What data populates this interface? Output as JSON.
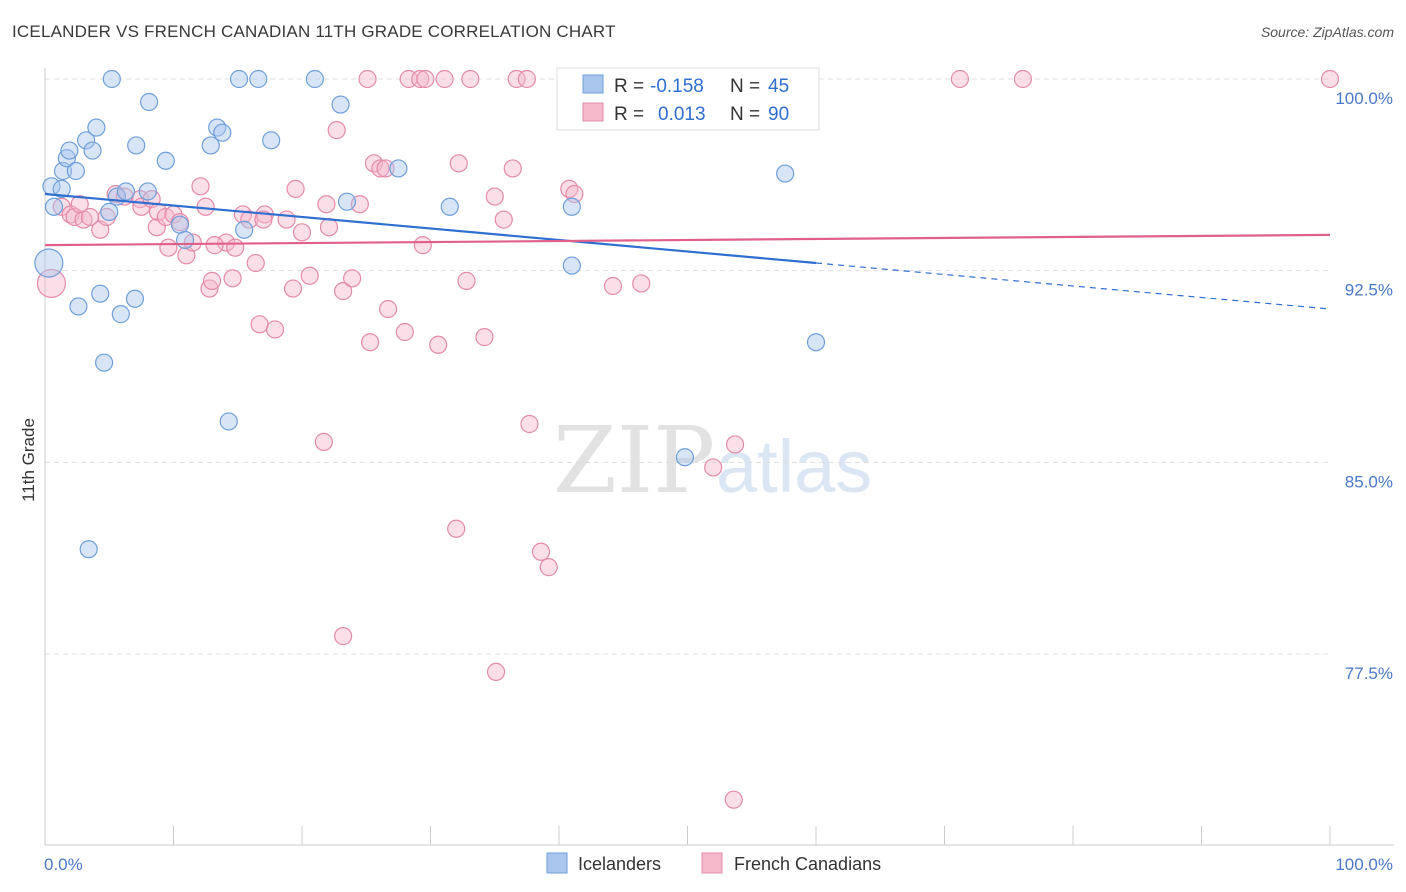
{
  "title": "ICELANDER VS FRENCH CANADIAN 11TH GRADE CORRELATION CHART",
  "source": "Source: ZipAtlas.com",
  "colors": {
    "blue_fill": "#a9c6ee",
    "blue_stroke": "#6f9fdb",
    "blue_line": "#2f6fd0",
    "pink_fill": "#f5b8cb",
    "pink_stroke": "#e58aa8",
    "pink_line": "#e0608a",
    "tick_text": "#4a78c8",
    "grid": "#dddddd"
  },
  "legend": {
    "rows": [
      {
        "r_label": "R =",
        "r_value": "-0.158",
        "n_label": "N =",
        "n_value": "45"
      },
      {
        "r_label": "R =",
        "r_value": "0.013",
        "n_label": "N =",
        "n_value": "90"
      }
    ]
  },
  "bottom_legend": [
    "Icelanders",
    "French Canadians"
  ],
  "chart_data": {
    "type": "scatter",
    "xlabel": "",
    "ylabel": "11th Grade",
    "xlim": [
      0,
      100
    ],
    "ylim": [
      70.6,
      100.8
    ],
    "x_tick_labels": [
      "0.0%",
      "100.0%"
    ],
    "y_ticks": [
      100.0,
      92.5,
      85.0,
      77.5
    ],
    "y_tick_labels": [
      "100.0%",
      "92.5%",
      "85.0%",
      "77.5%"
    ],
    "grid": true,
    "legend_position": "top-center",
    "watermark": "ZIPatlas",
    "series": [
      {
        "name": "Icelanders",
        "trend": {
          "x": [
            0,
            60
          ],
          "y": [
            95.5,
            92.8
          ],
          "dashed_extension_to": [
            100,
            91.0
          ]
        },
        "points": [
          [
            0.3,
            92.8
          ],
          [
            0.5,
            95.8
          ],
          [
            0.7,
            95.0
          ],
          [
            1.3,
            95.7
          ],
          [
            1.4,
            96.4
          ],
          [
            1.7,
            96.9
          ],
          [
            1.9,
            97.2
          ],
          [
            2.4,
            96.4
          ],
          [
            2.6,
            91.1
          ],
          [
            3.2,
            97.6
          ],
          [
            3.4,
            81.6
          ],
          [
            3.7,
            97.2
          ],
          [
            4.0,
            98.1
          ],
          [
            4.3,
            91.6
          ],
          [
            4.6,
            88.9
          ],
          [
            5.2,
            100.0
          ],
          [
            5.0,
            94.8
          ],
          [
            5.6,
            95.4
          ],
          [
            5.9,
            90.8
          ],
          [
            6.3,
            95.6
          ],
          [
            7.1,
            97.4
          ],
          [
            7.0,
            91.4
          ],
          [
            8.0,
            95.6
          ],
          [
            8.1,
            99.1
          ],
          [
            9.4,
            96.8
          ],
          [
            10.5,
            94.3
          ],
          [
            10.9,
            93.7
          ],
          [
            12.9,
            97.4
          ],
          [
            13.4,
            98.1
          ],
          [
            13.8,
            97.9
          ],
          [
            14.3,
            86.6
          ],
          [
            15.1,
            100.0
          ],
          [
            15.5,
            94.1
          ],
          [
            16.6,
            100.0
          ],
          [
            17.6,
            97.6
          ],
          [
            21.0,
            100.0
          ],
          [
            23.0,
            99.0
          ],
          [
            23.5,
            95.2
          ],
          [
            27.5,
            96.5
          ],
          [
            31.5,
            95.0
          ],
          [
            41.0,
            95.0
          ],
          [
            41.0,
            92.7
          ],
          [
            49.8,
            85.2
          ],
          [
            57.6,
            96.3
          ],
          [
            60.0,
            89.7
          ]
        ]
      },
      {
        "name": "French Canadians",
        "trend": {
          "x": [
            0,
            100
          ],
          "y": [
            93.5,
            93.9
          ]
        },
        "points": [
          [
            0.5,
            92.0
          ],
          [
            1.3,
            95.0
          ],
          [
            2.0,
            94.7
          ],
          [
            2.3,
            94.6
          ],
          [
            3.0,
            94.5
          ],
          [
            3.5,
            94.6
          ],
          [
            4.3,
            94.1
          ],
          [
            4.8,
            94.6
          ],
          [
            5.5,
            95.5
          ],
          [
            6.2,
            95.4
          ],
          [
            7.4,
            95.3
          ],
          [
            7.5,
            95.0
          ],
          [
            8.3,
            95.3
          ],
          [
            8.7,
            94.2
          ],
          [
            8.8,
            94.8
          ],
          [
            9.4,
            94.6
          ],
          [
            9.6,
            93.4
          ],
          [
            10.0,
            94.7
          ],
          [
            10.5,
            94.4
          ],
          [
            11.0,
            93.1
          ],
          [
            11.5,
            93.6
          ],
          [
            12.1,
            95.8
          ],
          [
            12.5,
            95.0
          ],
          [
            12.8,
            91.8
          ],
          [
            13.0,
            92.1
          ],
          [
            14.1,
            93.6
          ],
          [
            14.6,
            92.2
          ],
          [
            14.8,
            93.4
          ],
          [
            15.4,
            94.7
          ],
          [
            15.9,
            94.5
          ],
          [
            16.4,
            92.8
          ],
          [
            16.7,
            90.4
          ],
          [
            17.1,
            94.7
          ],
          [
            17.9,
            90.2
          ],
          [
            18.8,
            94.5
          ],
          [
            19.3,
            91.8
          ],
          [
            19.5,
            95.7
          ],
          [
            20.0,
            94.0
          ],
          [
            20.6,
            92.3
          ],
          [
            21.7,
            85.8
          ],
          [
            21.9,
            95.1
          ],
          [
            22.1,
            94.2
          ],
          [
            22.7,
            98.0
          ],
          [
            23.2,
            91.7
          ],
          [
            23.9,
            92.2
          ],
          [
            24.5,
            95.1
          ],
          [
            25.1,
            100.0
          ],
          [
            25.3,
            89.7
          ],
          [
            25.6,
            96.7
          ],
          [
            26.1,
            96.5
          ],
          [
            26.7,
            91.0
          ],
          [
            28.0,
            90.1
          ],
          [
            28.3,
            100.0
          ],
          [
            29.2,
            100.0
          ],
          [
            29.4,
            93.5
          ],
          [
            29.6,
            100.0
          ],
          [
            30.6,
            89.6
          ],
          [
            31.1,
            100.0
          ],
          [
            32.0,
            82.4
          ],
          [
            32.2,
            96.7
          ],
          [
            32.8,
            92.1
          ],
          [
            33.1,
            100.0
          ],
          [
            34.2,
            89.9
          ],
          [
            35.0,
            95.4
          ],
          [
            35.7,
            94.5
          ],
          [
            36.4,
            96.5
          ],
          [
            36.7,
            100.0
          ],
          [
            37.5,
            100.0
          ],
          [
            37.7,
            86.5
          ],
          [
            38.6,
            81.5
          ],
          [
            39.2,
            80.9
          ],
          [
            40.8,
            95.7
          ],
          [
            41.2,
            95.5
          ],
          [
            44.2,
            91.9
          ],
          [
            44.5,
            100.0
          ],
          [
            46.4,
            92.0
          ],
          [
            47.1,
            100.0
          ],
          [
            52.0,
            84.8
          ],
          [
            53.6,
            71.8
          ],
          [
            53.7,
            85.7
          ],
          [
            58.4,
            100.0
          ],
          [
            71.2,
            100.0
          ],
          [
            76.1,
            100.0
          ],
          [
            100.0,
            100.0
          ],
          [
            23.2,
            78.2
          ],
          [
            35.1,
            76.8
          ],
          [
            26.5,
            96.5
          ],
          [
            17.0,
            94.5
          ],
          [
            13.2,
            93.5
          ],
          [
            2.7,
            95.1
          ]
        ]
      }
    ]
  }
}
